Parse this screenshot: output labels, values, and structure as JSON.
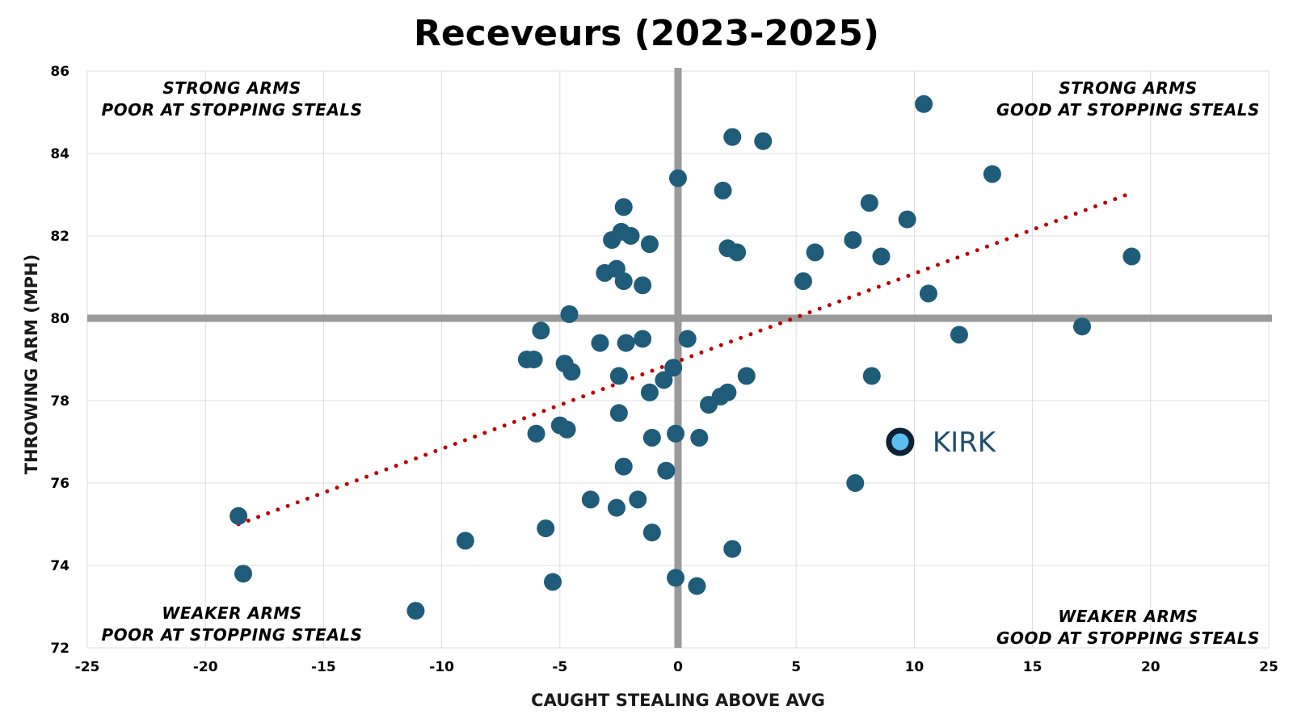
{
  "chart_data": {
    "type": "scatter",
    "title": "Receveurs (2023-2025)",
    "xlabel": "CAUGHT STEALING ABOVE AVG",
    "ylabel": "THROWING ARM (MPH)",
    "xlim": [
      -25,
      25
    ],
    "ylim": [
      72,
      86
    ],
    "x_ticks": [
      -25,
      -20,
      -15,
      -10,
      -5,
      0,
      5,
      10,
      15,
      20,
      25
    ],
    "y_ticks": [
      72,
      74,
      76,
      78,
      80,
      82,
      84,
      86
    ],
    "x_tick_labels": [
      "-25",
      "-20",
      "-15",
      "-10",
      "-5",
      "0",
      "5",
      "10",
      "15",
      "20",
      "25"
    ],
    "y_tick_labels": [
      "72",
      "74",
      "76",
      "78",
      "80",
      "82",
      "84",
      "86"
    ],
    "grid": true,
    "reference_lines": {
      "x": 0,
      "y": 80
    },
    "trendline": {
      "style": "dotted",
      "color": "#c00000",
      "from": [
        -18.6,
        75.0
      ],
      "to": [
        19.0,
        83.0
      ]
    },
    "quadrant_labels": {
      "top_left": [
        "STRONG ARMS",
        "POOR AT STOPPING STEALS"
      ],
      "top_right": [
        "STRONG ARMS",
        "GOOD AT STOPPING STEALS"
      ],
      "bottom_left": [
        "WEAKER ARMS",
        "POOR AT STOPPING STEALS"
      ],
      "bottom_right": [
        "WEAKER ARMS",
        "GOOD AT STOPPING STEALS"
      ]
    },
    "highlight": {
      "label": "KIRK",
      "x": 9.4,
      "y": 77.0,
      "color": "#5bc0f0",
      "outline": "#0d2233"
    },
    "series": [
      {
        "color": "#1f5c7a",
        "points": [
          [
            10.4,
            85.2
          ],
          [
            2.3,
            84.4
          ],
          [
            3.6,
            84.3
          ],
          [
            0.0,
            83.4
          ],
          [
            1.9,
            83.1
          ],
          [
            13.3,
            83.5
          ],
          [
            8.1,
            82.8
          ],
          [
            -2.3,
            82.7
          ],
          [
            -2.4,
            82.1
          ],
          [
            -2.8,
            81.9
          ],
          [
            -2.0,
            82.0
          ],
          [
            -1.2,
            81.8
          ],
          [
            9.7,
            82.4
          ],
          [
            2.1,
            81.7
          ],
          [
            2.5,
            81.6
          ],
          [
            5.8,
            81.6
          ],
          [
            7.4,
            81.9
          ],
          [
            8.6,
            81.5
          ],
          [
            19.2,
            81.5
          ],
          [
            -3.1,
            81.1
          ],
          [
            -2.6,
            81.2
          ],
          [
            -2.3,
            80.9
          ],
          [
            -1.5,
            80.8
          ],
          [
            5.3,
            80.9
          ],
          [
            10.6,
            80.6
          ],
          [
            -4.6,
            80.1
          ],
          [
            -5.8,
            79.7
          ],
          [
            11.9,
            79.6
          ],
          [
            17.1,
            79.8
          ],
          [
            -3.3,
            79.4
          ],
          [
            -2.2,
            79.4
          ],
          [
            -1.5,
            79.5
          ],
          [
            0.4,
            79.5
          ],
          [
            -6.4,
            79.0
          ],
          [
            -6.1,
            79.0
          ],
          [
            -4.8,
            78.9
          ],
          [
            -4.5,
            78.7
          ],
          [
            -2.5,
            78.6
          ],
          [
            -0.2,
            78.8
          ],
          [
            -0.6,
            78.5
          ],
          [
            2.9,
            78.6
          ],
          [
            8.2,
            78.6
          ],
          [
            -1.2,
            78.2
          ],
          [
            1.8,
            78.1
          ],
          [
            2.1,
            78.2
          ],
          [
            1.3,
            77.9
          ],
          [
            -2.5,
            77.7
          ],
          [
            -5.0,
            77.4
          ],
          [
            -4.7,
            77.3
          ],
          [
            -6.0,
            77.2
          ],
          [
            -1.1,
            77.1
          ],
          [
            -0.1,
            77.2
          ],
          [
            0.9,
            77.1
          ],
          [
            -2.3,
            76.4
          ],
          [
            -0.5,
            76.3
          ],
          [
            7.5,
            76.0
          ],
          [
            -3.7,
            75.6
          ],
          [
            -1.7,
            75.6
          ],
          [
            -2.6,
            75.4
          ],
          [
            -5.6,
            74.9
          ],
          [
            -1.1,
            74.8
          ],
          [
            -9.0,
            74.6
          ],
          [
            2.3,
            74.4
          ],
          [
            -5.3,
            73.6
          ],
          [
            -0.1,
            73.7
          ],
          [
            0.8,
            73.5
          ],
          [
            -18.6,
            75.2
          ],
          [
            -18.4,
            73.8
          ],
          [
            -11.1,
            72.9
          ]
        ]
      }
    ]
  },
  "style": {
    "point_color": "#1f5c7a",
    "trend_color": "#c00000",
    "refline_color": "#9a9a9a",
    "grid_color": "#dddddd"
  }
}
